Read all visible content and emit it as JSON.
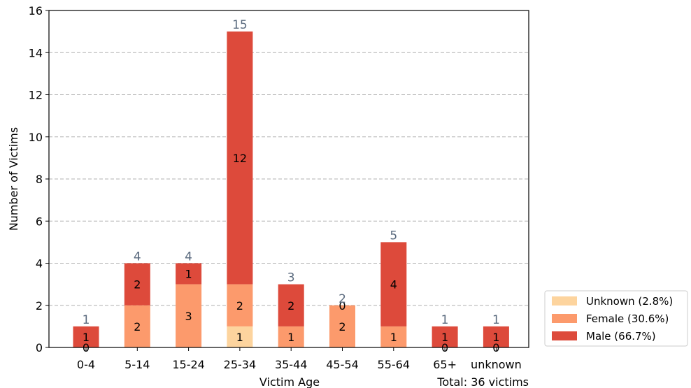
{
  "chart_data": {
    "type": "bar",
    "stacked": true,
    "categories": [
      "0-4",
      "5-14",
      "15-24",
      "25-34",
      "35-44",
      "45-54",
      "55-64",
      "65+",
      "unknown"
    ],
    "series": [
      {
        "name": "Unknown (2.8%)",
        "color": "#fdd49e",
        "values": [
          0,
          0,
          0,
          1,
          0,
          0,
          0,
          0,
          0
        ]
      },
      {
        "name": "Female (30.6%)",
        "color": "#fc9a6c",
        "values": [
          0,
          2,
          3,
          2,
          1,
          2,
          1,
          0,
          0
        ]
      },
      {
        "name": "Male (66.7%)",
        "color": "#dd4a3b",
        "values": [
          1,
          2,
          1,
          12,
          2,
          0,
          4,
          1,
          1
        ]
      }
    ],
    "totals": [
      1,
      4,
      4,
      15,
      3,
      2,
      5,
      1,
      1
    ],
    "xlabel": "Victim Age",
    "ylabel": "Number of Victims",
    "ylim": [
      0,
      16
    ],
    "yticks": [
      0,
      2,
      4,
      6,
      8,
      10,
      12,
      14,
      16
    ],
    "grid": "y-dashed",
    "legend_position": "lower-right-outside",
    "annotation": "Total: 36 victims"
  }
}
